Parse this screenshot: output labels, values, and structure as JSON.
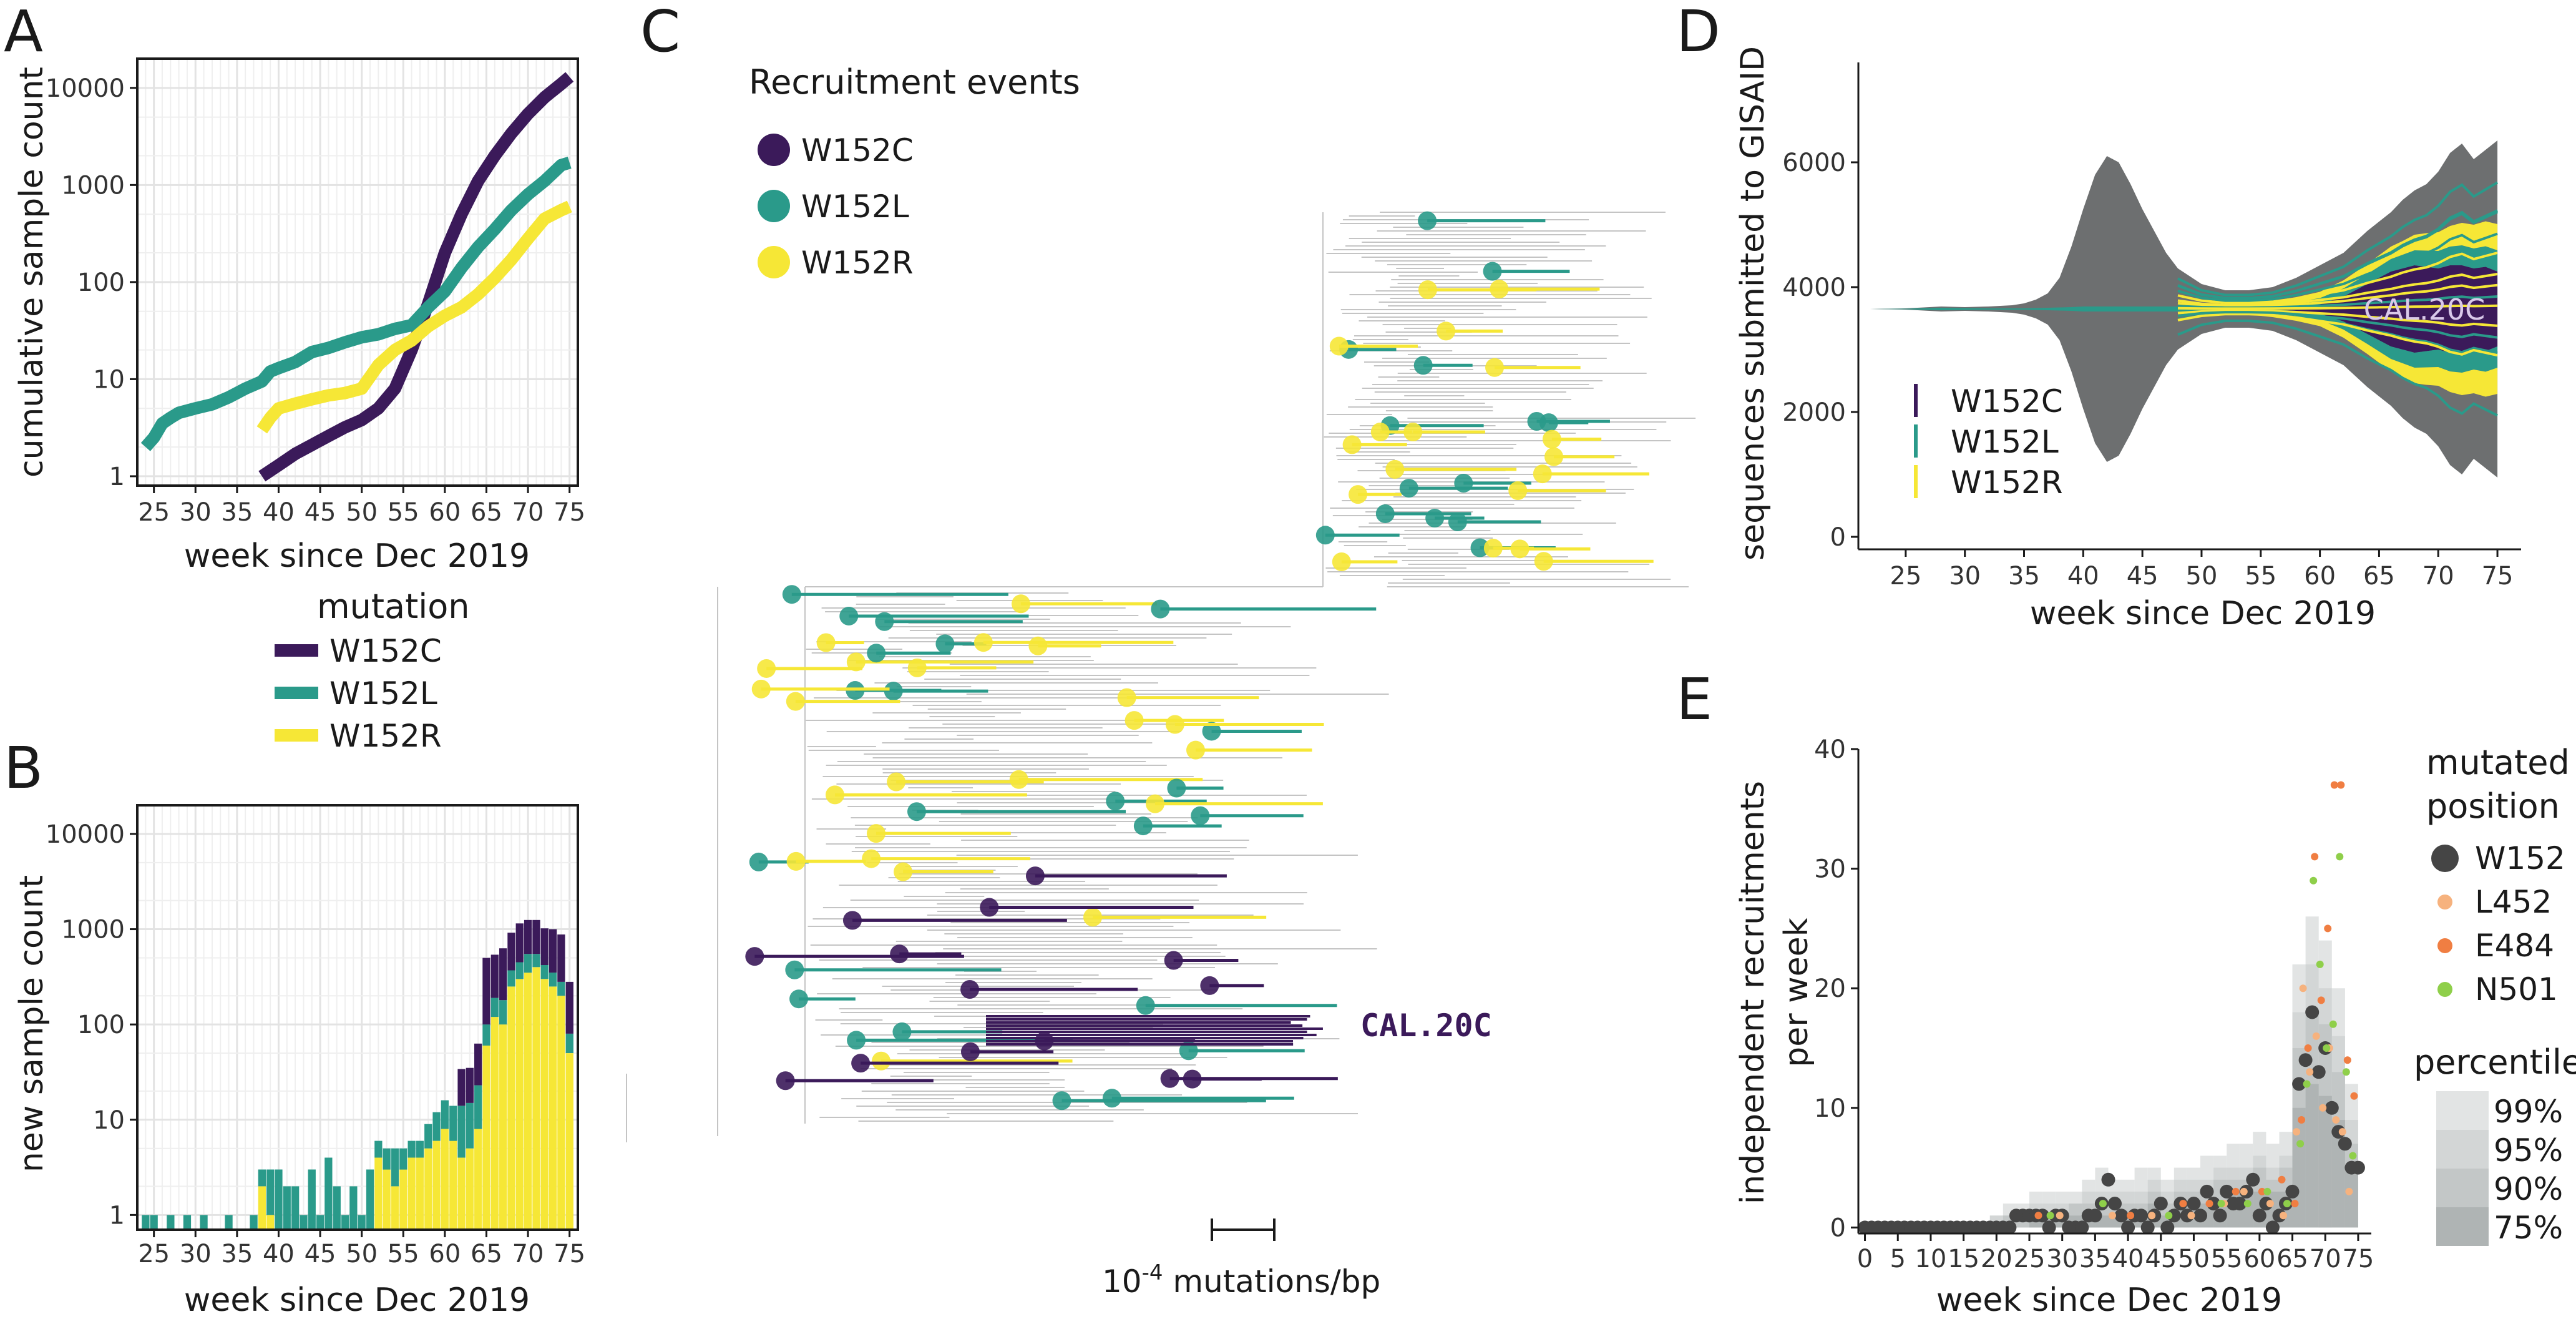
{
  "colors": {
    "W152C": "#3b1a5a",
    "W152L": "#2a9a8a",
    "W152R": "#f6e736",
    "gray": "#6d6f70",
    "tree": "#c4c4c4",
    "L452": "#f6b27e",
    "E484": "#f07e42",
    "N501": "#8fcf4a",
    "W152": "#454545"
  },
  "panelA": {
    "letter": "A",
    "xlabel": "week since Dec 2019",
    "ylabel": "cumulative sample count",
    "xticks": [
      "25",
      "30",
      "35",
      "40",
      "45",
      "50",
      "55",
      "60",
      "65",
      "70",
      "75"
    ],
    "yticks": [
      "1",
      "10",
      "100",
      "1000",
      "10000"
    ]
  },
  "legendABC": {
    "title": "mutation",
    "items": [
      "W152C",
      "W152L",
      "W152R"
    ]
  },
  "panelB": {
    "letter": "B",
    "xlabel": "week since Dec 2019",
    "ylabel": "new sample count",
    "xticks": [
      "25",
      "30",
      "35",
      "40",
      "45",
      "50",
      "55",
      "60",
      "65",
      "70",
      "75"
    ],
    "yticks": [
      "1",
      "10",
      "100",
      "1000",
      "10000"
    ]
  },
  "panelC": {
    "letter": "C",
    "legend_title": "Recruitment events",
    "legend_items": [
      "W152C",
      "W152L",
      "W152R"
    ],
    "clade_label": "CAL.20C",
    "scale_label_base": "10",
    "scale_label_exp": "-4",
    "scale_label_rest": " mutations/bp"
  },
  "panelD": {
    "letter": "D",
    "xlabel": "week since Dec 2019",
    "ylabel": "sequences submitted to GISAID",
    "xticks": [
      "25",
      "30",
      "35",
      "40",
      "45",
      "50",
      "55",
      "60",
      "65",
      "70",
      "75"
    ],
    "yticks": [
      "0",
      "2000",
      "4000",
      "6000"
    ],
    "clade_label": "CAL.20C",
    "legend_items": [
      "W152C",
      "W152L",
      "W152R"
    ]
  },
  "panelE": {
    "letter": "E",
    "xlabel": "week since Dec 2019",
    "ylabel_line1": "independent recruitments",
    "ylabel_line2": "per week",
    "xticks": [
      "0",
      "5",
      "10",
      "15",
      "20",
      "25",
      "30",
      "35",
      "40",
      "45",
      "50",
      "55",
      "60",
      "65",
      "70",
      "75"
    ],
    "yticks": [
      "0",
      "10",
      "20",
      "30",
      "40"
    ],
    "legend_title_line1": "mutated",
    "legend_title_line2": "position",
    "legend_items": [
      "W152",
      "L452",
      "E484",
      "N501"
    ],
    "percentile_title": "percentile",
    "percentile_items": [
      "99%",
      "95%",
      "90%",
      "75%"
    ]
  },
  "chart_data": [
    {
      "id": "A",
      "type": "line",
      "title": "",
      "xlabel": "week since Dec 2019",
      "ylabel": "cumulative sample count",
      "yscale": "log",
      "xlim": [
        23,
        76
      ],
      "ylim": [
        0.8,
        20000
      ],
      "series": [
        {
          "name": "W152C",
          "x": [
            38,
            40,
            42,
            44,
            46,
            48,
            50,
            52,
            54,
            56,
            58,
            60,
            62,
            64,
            66,
            68,
            70,
            72,
            74,
            75
          ],
          "y": [
            1,
            1.3,
            1.7,
            2.1,
            2.6,
            3.2,
            3.8,
            5,
            8,
            20,
            60,
            200,
            500,
            1100,
            2000,
            3400,
            5400,
            8000,
            11000,
            13000
          ]
        },
        {
          "name": "W152L",
          "x": [
            24,
            25,
            26,
            27,
            28,
            30,
            32,
            34,
            36,
            38,
            39,
            40,
            42,
            44,
            46,
            48,
            50,
            52,
            54,
            56,
            58,
            60,
            62,
            64,
            66,
            68,
            70,
            72,
            74,
            75
          ],
          "y": [
            2,
            2.5,
            3.5,
            4,
            4.5,
            5,
            5.5,
            6.5,
            8,
            9.5,
            12,
            13,
            15,
            19,
            21,
            24,
            27,
            29,
            33,
            36,
            55,
            80,
            140,
            230,
            350,
            550,
            800,
            1100,
            1600,
            1700
          ]
        },
        {
          "name": "W152R",
          "x": [
            38,
            39,
            40,
            42,
            44,
            46,
            48,
            50,
            52,
            54,
            56,
            58,
            60,
            62,
            64,
            66,
            68,
            70,
            72,
            74,
            75
          ],
          "y": [
            3,
            4,
            5,
            5.6,
            6.2,
            6.8,
            7.2,
            8,
            14,
            20,
            25,
            35,
            45,
            55,
            75,
            110,
            170,
            280,
            450,
            550,
            600
          ]
        }
      ]
    },
    {
      "id": "B",
      "type": "bar",
      "stacked": true,
      "yscale": "log",
      "xlabel": "week since Dec 2019",
      "ylabel": "new sample count",
      "xlim": [
        23,
        76
      ],
      "ylim": [
        0.7,
        20000
      ],
      "categories": [
        24,
        25,
        26,
        27,
        28,
        29,
        30,
        31,
        32,
        33,
        34,
        35,
        36,
        37,
        38,
        39,
        40,
        41,
        42,
        43,
        44,
        45,
        46,
        47,
        48,
        49,
        50,
        51,
        52,
        53,
        54,
        55,
        56,
        57,
        58,
        59,
        60,
        61,
        62,
        63,
        64,
        65,
        66,
        67,
        68,
        69,
        70,
        71,
        72,
        73,
        74,
        75
      ],
      "series": [
        {
          "name": "W152R",
          "values": [
            0,
            0,
            0,
            0,
            0,
            0,
            0,
            0,
            0,
            0,
            0,
            0,
            0,
            0,
            2,
            1,
            0,
            0,
            0,
            0,
            0,
            0,
            0,
            0,
            0,
            0,
            0,
            0,
            4,
            3,
            2,
            3,
            4,
            4,
            5,
            6,
            8,
            6,
            4,
            5,
            8,
            60,
            120,
            100,
            250,
            300,
            350,
            400,
            300,
            250,
            200,
            50
          ]
        },
        {
          "name": "W152L",
          "values": [
            1,
            1,
            0,
            1,
            0,
            1,
            0,
            1,
            0,
            0,
            1,
            0,
            0,
            1,
            1,
            2,
            3,
            2,
            2,
            1,
            3,
            1,
            4,
            2,
            1,
            2,
            1,
            3,
            2,
            2,
            3,
            2,
            2,
            2,
            4,
            6,
            8,
            8,
            10,
            10,
            15,
            40,
            70,
            80,
            120,
            150,
            200,
            150,
            120,
            100,
            80,
            30
          ]
        },
        {
          "name": "W152C",
          "values": [
            0,
            0,
            0,
            0,
            0,
            0,
            0,
            0,
            0,
            0,
            0,
            0,
            0,
            0,
            0,
            0,
            0,
            0,
            0,
            0,
            0,
            0,
            0,
            0,
            0,
            0,
            0,
            0,
            0,
            0,
            0,
            0,
            0,
            0,
            0,
            0,
            0,
            0,
            20,
            20,
            40,
            400,
            350,
            450,
            550,
            700,
            700,
            700,
            600,
            650,
            600,
            200
          ]
        }
      ]
    },
    {
      "id": "D",
      "type": "area",
      "xlabel": "week since Dec 2019",
      "ylabel": "sequences submitted to GISAID",
      "xlim": [
        21,
        77
      ],
      "ylim": [
        -200,
        7600
      ],
      "center": 3650,
      "x": [
        22,
        25,
        28,
        30,
        32,
        34,
        35,
        36,
        37,
        38,
        39,
        40,
        41,
        42,
        43,
        44,
        45,
        46,
        47,
        48,
        50,
        52,
        54,
        56,
        58,
        60,
        62,
        64,
        65,
        66,
        67,
        68,
        69,
        70,
        71,
        72,
        73,
        74,
        75
      ],
      "series": [
        {
          "name": "total",
          "values": [
            0,
            20,
            80,
            60,
            80,
            120,
            180,
            300,
            500,
            1000,
            2000,
            3200,
            4300,
            4900,
            4700,
            4000,
            3200,
            2500,
            1800,
            1300,
            800,
            600,
            600,
            700,
            1000,
            1400,
            1800,
            2500,
            2800,
            3100,
            3500,
            3800,
            4000,
            4400,
            5000,
            5300,
            4800,
            5100,
            5400
          ]
        },
        {
          "name": "W152C",
          "values": [
            0,
            0,
            0,
            0,
            0,
            0,
            0,
            0,
            0,
            0,
            0,
            0,
            0,
            0,
            0,
            0,
            0,
            0,
            0,
            0,
            0,
            0,
            0,
            20,
            60,
            150,
            400,
            800,
            1000,
            1200,
            1300,
            1400,
            1350,
            1300,
            1400,
            1400,
            1300,
            1350,
            1200
          ]
        },
        {
          "name": "W152L",
          "values": [
            0,
            5,
            20,
            15,
            10,
            10,
            10,
            15,
            20,
            25,
            30,
            40,
            40,
            40,
            40,
            40,
            40,
            40,
            40,
            40,
            40,
            40,
            50,
            60,
            80,
            100,
            130,
            160,
            180,
            200,
            220,
            240,
            260,
            280,
            300,
            320,
            320,
            330,
            340
          ]
        },
        {
          "name": "W152R",
          "values": [
            0,
            0,
            0,
            0,
            0,
            0,
            0,
            0,
            0,
            0,
            0,
            0,
            0,
            0,
            0,
            0,
            0,
            0,
            0,
            0,
            0,
            20,
            40,
            60,
            80,
            100,
            130,
            160,
            180,
            200,
            220,
            250,
            280,
            300,
            330,
            360,
            380,
            400,
            420
          ]
        }
      ]
    },
    {
      "id": "E",
      "type": "scatter",
      "xlabel": "week since Dec 2019",
      "ylabel": "independent recruitments per week",
      "xlim": [
        -1,
        77
      ],
      "ylim": [
        -0.5,
        40
      ],
      "percentiles": {
        "x": [
          20,
          22,
          24,
          26,
          28,
          30,
          32,
          34,
          36,
          38,
          40,
          42,
          44,
          46,
          48,
          50,
          52,
          54,
          56,
          58,
          60,
          62,
          64,
          66,
          68,
          70,
          72,
          74
        ],
        "p99": [
          1,
          2,
          2,
          3,
          3,
          3,
          3,
          4,
          5,
          4,
          4,
          5,
          5,
          4,
          5,
          5,
          6,
          6,
          7,
          7,
          8,
          7,
          8,
          22,
          26,
          24,
          20,
          12
        ],
        "p95": [
          1,
          1,
          1,
          2,
          2,
          2,
          2,
          3,
          3,
          3,
          3,
          3,
          4,
          3,
          4,
          4,
          4,
          5,
          5,
          5,
          6,
          5,
          6,
          18,
          22,
          20,
          16,
          9
        ],
        "p90": [
          0,
          1,
          1,
          1,
          1,
          1,
          2,
          2,
          2,
          2,
          2,
          2,
          3,
          2,
          3,
          3,
          3,
          4,
          4,
          4,
          5,
          4,
          5,
          15,
          18,
          17,
          13,
          7
        ],
        "p75": [
          0,
          0,
          0,
          1,
          1,
          1,
          1,
          1,
          1,
          1,
          1,
          1,
          2,
          1,
          2,
          2,
          2,
          2,
          3,
          3,
          3,
          3,
          3,
          10,
          12,
          11,
          9,
          5
        ]
      },
      "series": [
        {
          "name": "W152",
          "x": [
            0,
            1,
            2,
            3,
            4,
            5,
            6,
            7,
            8,
            9,
            10,
            11,
            12,
            13,
            14,
            15,
            16,
            17,
            18,
            19,
            20,
            21,
            22,
            23,
            24,
            25,
            26,
            27,
            28,
            29,
            30,
            31,
            32,
            33,
            34,
            35,
            36,
            37,
            38,
            39,
            40,
            41,
            42,
            43,
            44,
            45,
            46,
            47,
            48,
            49,
            50,
            51,
            52,
            53,
            54,
            55,
            56,
            57,
            58,
            59,
            60,
            61,
            62,
            63,
            64,
            65,
            66,
            67,
            68,
            69,
            70,
            71,
            72,
            73,
            74,
            75
          ],
          "y": [
            0,
            0,
            0,
            0,
            0,
            0,
            0,
            0,
            0,
            0,
            0,
            0,
            0,
            0,
            0,
            0,
            0,
            0,
            0,
            0,
            0,
            0,
            0,
            1,
            1,
            1,
            1,
            1,
            0,
            1,
            1,
            0,
            0,
            0,
            1,
            1,
            2,
            4,
            2,
            1,
            0,
            1,
            1,
            0,
            1,
            2,
            0,
            1,
            2,
            1,
            2,
            1,
            3,
            2,
            1,
            3,
            2,
            2,
            3,
            4,
            1,
            2,
            0,
            1,
            2,
            3,
            12,
            14,
            18,
            13,
            15,
            10,
            8,
            7,
            5,
            5
          ]
        },
        {
          "name": "L452",
          "x": [
            30,
            38,
            44,
            50,
            55,
            58,
            62,
            64,
            66,
            67,
            68,
            69,
            70,
            71,
            72,
            73,
            74
          ],
          "y": [
            1,
            1,
            1,
            1,
            2,
            3,
            2,
            1,
            8,
            20,
            13,
            16,
            10,
            15,
            9,
            8,
            3
          ]
        },
        {
          "name": "E484",
          "x": [
            26,
            40,
            48,
            52,
            56,
            60,
            63,
            65,
            66,
            67,
            68,
            69,
            70,
            71,
            72,
            73,
            74
          ],
          "y": [
            1,
            1,
            2,
            2,
            3,
            3,
            4,
            2,
            9,
            15,
            31,
            19,
            25,
            37,
            37,
            14,
            11
          ]
        },
        {
          "name": "N501",
          "x": [
            28,
            36,
            46,
            54,
            58,
            61,
            64,
            66,
            67,
            68,
            69,
            70,
            71,
            72,
            73,
            74
          ],
          "y": [
            1,
            2,
            1,
            2,
            2,
            3,
            2,
            7,
            12,
            29,
            22,
            15,
            17,
            31,
            13,
            6
          ]
        }
      ]
    }
  ]
}
